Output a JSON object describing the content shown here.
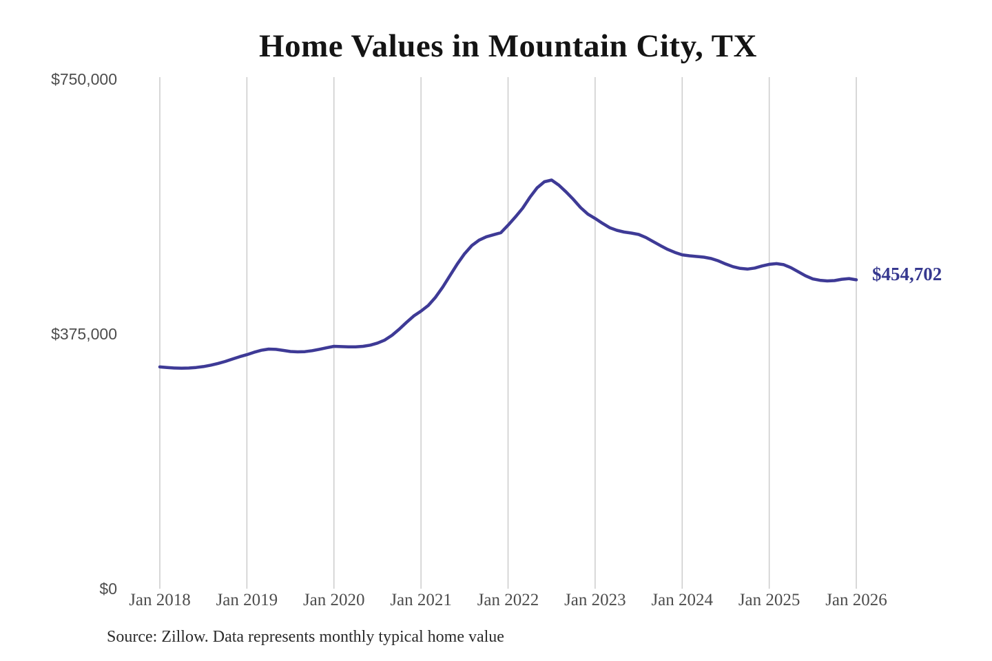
{
  "page": {
    "background_color": "#ffffff"
  },
  "chart": {
    "title": "Home Values in Mountain City, TX",
    "source_note": "Source: Zillow. Data represents monthly typical home value",
    "end_label": "$454,702",
    "colors": {
      "line": "#3e3a96",
      "end_label": "#36388f",
      "gridline": "#cccccc",
      "title_text": "#141414",
      "axis_text": "#4d4d4d",
      "source_text": "#2b2b2b"
    }
  },
  "chart_data": {
    "type": "line",
    "title": "Home Values in Mountain City, TX",
    "x_unit": "month",
    "x_start": "Jan 2018",
    "x_end": "Jan 2026",
    "x_tick_labels": [
      "Jan 2018",
      "Jan 2019",
      "Jan 2020",
      "Jan 2021",
      "Jan 2022",
      "Jan 2023",
      "Jan 2024",
      "Jan 2025",
      "Jan 2026"
    ],
    "y_ticks": [
      {
        "value": 0,
        "label": "$0"
      },
      {
        "value": 375000,
        "label": "$375,000"
      },
      {
        "value": 750000,
        "label": "$750,000"
      }
    ],
    "ylim": [
      0,
      750000
    ],
    "grid": "vertical-only",
    "legend": "none",
    "series": [
      {
        "name": "Monthly typical home value",
        "color": "#3e3a96",
        "final_value": 454702,
        "final_value_label": "$454,702",
        "values": [
          326500,
          325500,
          324800,
          324500,
          324800,
          325600,
          327000,
          329000,
          331500,
          334500,
          338000,
          341500,
          344500,
          348000,
          351000,
          352700,
          352300,
          350800,
          349200,
          348600,
          349000,
          350400,
          352400,
          354600,
          356800,
          356400,
          356000,
          356000,
          356800,
          358500,
          361500,
          366000,
          373000,
          382000,
          392000,
          401500,
          408500,
          417000,
          429000,
          444000,
          461000,
          478000,
          493000,
          505000,
          513000,
          518000,
          521000,
          524000,
          535000,
          547000,
          560000,
          576000,
          590000,
          599000,
          601500,
          594000,
          584000,
          573000,
          561000,
          551500,
          545000,
          538000,
          531500,
          527500,
          525000,
          523500,
          521500,
          517000,
          511000,
          505000,
          499500,
          495000,
          491500,
          490000,
          489000,
          488000,
          486000,
          482500,
          478000,
          474000,
          471500,
          470500,
          472000,
          475000,
          477500,
          478500,
          477000,
          472500,
          466500,
          460500,
          456000,
          454000,
          453000,
          453500,
          455500,
          456500,
          454702
        ]
      }
    ]
  }
}
